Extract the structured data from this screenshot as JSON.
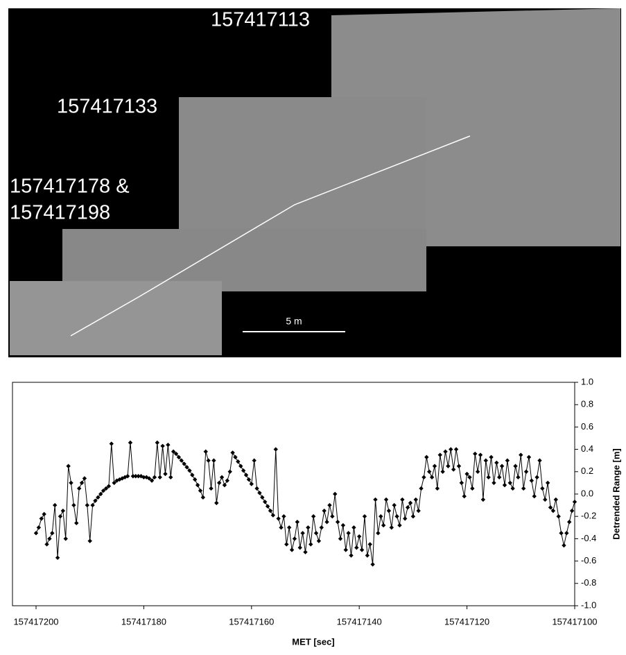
{
  "image": {
    "labels": [
      "157417113",
      "157417133",
      "157417178 &",
      "157417198"
    ],
    "scale_label": "5 m"
  },
  "chart_data": {
    "type": "line",
    "x_label": "MET [sec]",
    "y_label": "Detrended Range [m]",
    "xlim": [
      157417200,
      157417100
    ],
    "xticks": [
      157417200,
      157417180,
      157417160,
      157417140,
      157417120,
      157417100
    ],
    "ylim": [
      -1,
      1
    ],
    "yticks": [
      {
        "value": -1,
        "label": "-1.0"
      },
      -0.8,
      -0.6,
      -0.4,
      -0.2,
      {
        "value": 0,
        "label": "0.0"
      },
      0.2,
      0.4,
      0.6,
      0.8,
      {
        "value": 1,
        "label": "1.0"
      }
    ],
    "y_axis_side": "right",
    "grid": false,
    "series": [
      {
        "color": "#000000",
        "x": [
          157417200,
          157417199.5,
          157417199,
          157417198.5,
          157417198,
          157417197.5,
          157417197,
          157417196.5,
          157417196,
          157417195.5,
          157417195,
          157417194.5,
          157417194,
          157417193.5,
          157417193,
          157417192.5,
          157417192,
          157417191.5,
          157417191,
          157417190.5,
          157417190,
          157417189.5,
          157417189,
          157417188.5,
          157417188,
          157417187.5,
          157417187,
          157417186.5,
          157417186,
          157417185.5,
          157417185,
          157417184.5,
          157417184,
          157417183.5,
          157417183,
          157417182.5,
          157417182,
          157417181.5,
          157417181,
          157417180.5,
          157417180,
          157417179.5,
          157417179,
          157417178.5,
          157417178,
          157417177.5,
          157417177,
          157417176.5,
          157417176,
          157417175.5,
          157417175,
          157417174.5,
          157417174,
          157417173.5,
          157417173,
          157417172.5,
          157417172,
          157417171.5,
          157417171,
          157417170.5,
          157417170,
          157417169.5,
          157417169,
          157417168.5,
          157417168,
          157417167.5,
          157417167,
          157417166.5,
          157417166,
          157417165.5,
          157417165,
          157417164.5,
          157417164,
          157417163.5,
          157417163,
          157417162.5,
          157417162,
          157417161.5,
          157417161,
          157417160.5,
          157417160,
          157417159.5,
          157417159,
          157417158.5,
          157417158,
          157417157.5,
          157417157,
          157417156.5,
          157417156,
          157417155.5,
          157417155,
          157417154.5,
          157417154,
          157417153.5,
          157417153,
          157417152.5,
          157417152,
          157417151.5,
          157417151,
          157417150.5,
          157417150,
          157417149.5,
          157417149,
          157417148.5,
          157417148,
          157417147.5,
          157417147,
          157417146.5,
          157417146,
          157417145.5,
          157417145,
          157417144.5,
          157417144,
          157417143.5,
          157417143,
          157417142.5,
          157417142,
          157417141.5,
          157417141,
          157417140.5,
          157417140,
          157417139.5,
          157417139,
          157417138.5,
          157417138,
          157417137.5,
          157417137,
          157417136.5,
          157417136,
          157417135.5,
          157417135,
          157417134.5,
          157417134,
          157417133.5,
          157417133,
          157417132.5,
          157417132,
          157417131.5,
          157417131,
          157417130.5,
          157417130,
          157417129.5,
          157417129,
          157417128.5,
          157417128,
          157417127.5,
          157417127,
          157417126.5,
          157417126,
          157417125.5,
          157417125,
          157417124.5,
          157417124,
          157417123.5,
          157417123,
          157417122.5,
          157417122,
          157417121.5,
          157417121,
          157417120.5,
          157417120,
          157417119.5,
          157417119,
          157417118.5,
          157417118,
          157417117.5,
          157417117,
          157417116.5,
          157417116,
          157417115.5,
          157417115,
          157417114.5,
          157417114,
          157417113.5,
          157417113,
          157417112.5,
          157417112,
          157417111.5,
          157417111,
          157417110.5,
          157417110,
          157417109.5,
          157417109,
          157417108.5,
          157417108,
          157417107.5,
          157417107,
          157417106.5,
          157417106,
          157417105.5,
          157417105,
          157417104.5,
          157417104,
          157417103.5,
          157417103,
          157417102.5,
          157417102,
          157417101.5,
          157417101,
          157417100.5,
          157417100
        ],
        "values": [
          -0.35,
          -0.3,
          -0.22,
          -0.18,
          -0.45,
          -0.4,
          -0.35,
          -0.1,
          -0.57,
          -0.2,
          -0.15,
          -0.4,
          0.25,
          0.1,
          -0.1,
          -0.26,
          0.05,
          0.1,
          0.14,
          -0.1,
          -0.42,
          -0.1,
          -0.06,
          -0.03,
          0,
          0.03,
          0.05,
          0.07,
          0.45,
          0.1,
          0.12,
          0.13,
          0.14,
          0.15,
          0.16,
          0.46,
          0.16,
          0.16,
          0.16,
          0.16,
          0.15,
          0.15,
          0.14,
          0.12,
          0.15,
          0.46,
          0.15,
          0.43,
          0.18,
          0.44,
          0.15,
          0.38,
          0.36,
          0.33,
          0.3,
          0.27,
          0.24,
          0.21,
          0.17,
          0.13,
          0.08,
          0.03,
          -0.03,
          0.38,
          0.3,
          0.05,
          0.3,
          -0.08,
          0.1,
          0.15,
          0.08,
          0.12,
          0.2,
          0.37,
          0.33,
          0.29,
          0.25,
          0.21,
          0.17,
          0.13,
          0.09,
          0.3,
          0.05,
          0.01,
          -0.03,
          -0.07,
          -0.11,
          -0.15,
          -0.19,
          0.4,
          -0.22,
          -0.3,
          -0.2,
          -0.45,
          -0.3,
          -0.5,
          -0.4,
          -0.25,
          -0.48,
          -0.35,
          -0.52,
          -0.3,
          -0.45,
          -0.2,
          -0.35,
          -0.42,
          -0.3,
          -0.15,
          -0.25,
          -0.1,
          -0.2,
          0,
          -0.25,
          -0.4,
          -0.28,
          -0.5,
          -0.35,
          -0.55,
          -0.3,
          -0.48,
          -0.38,
          -0.5,
          -0.2,
          -0.55,
          -0.45,
          -0.63,
          -0.05,
          -0.35,
          -0.2,
          -0.28,
          -0.05,
          -0.15,
          -0.3,
          -0.1,
          -0.2,
          -0.28,
          -0.05,
          -0.22,
          -0.12,
          -0.08,
          -0.2,
          -0.05,
          -0.15,
          0.05,
          0.15,
          0.33,
          0.2,
          0.15,
          0.25,
          0.05,
          0.35,
          0.2,
          0.38,
          0.25,
          0.4,
          0.22,
          0.4,
          0.25,
          0.1,
          -0.02,
          0.18,
          0.15,
          0.05,
          0.36,
          0.2,
          0.35,
          -0.05,
          0.3,
          0.15,
          0.33,
          0.1,
          0.28,
          0.15,
          0.25,
          0.08,
          0.3,
          0.1,
          0.05,
          0.25,
          0.15,
          0.35,
          0.05,
          0.2,
          0.33,
          0.12,
          -0.02,
          0.15,
          0.3,
          0.05,
          -0.05,
          0.1,
          -0.12,
          -0.15,
          -0.05,
          -0.2,
          -0.35,
          -0.46,
          -0.35,
          -0.25,
          -0.15,
          -0.07
        ]
      }
    ]
  }
}
